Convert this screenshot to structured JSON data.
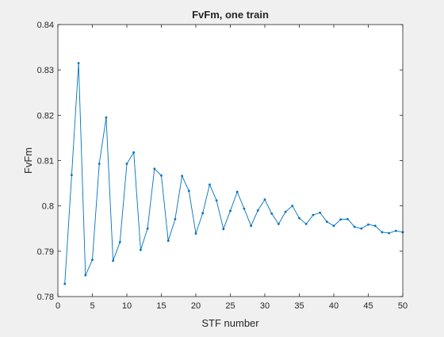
{
  "chart_data": {
    "type": "line",
    "title": "FvFm, one train",
    "xlabel": "STF number",
    "ylabel": "FvFm",
    "xlim": [
      0,
      50
    ],
    "ylim": [
      0.78,
      0.84
    ],
    "xticks": [
      0,
      5,
      10,
      15,
      20,
      25,
      30,
      35,
      40,
      45,
      50
    ],
    "yticks": [
      0.78,
      0.79,
      0.8,
      0.81,
      0.82,
      0.83,
      0.84
    ],
    "xtick_labels": [
      "0",
      "5",
      "10",
      "15",
      "20",
      "25",
      "30",
      "35",
      "40",
      "45",
      "50"
    ],
    "ytick_labels": [
      "0.78",
      "0.79",
      "0.8",
      "0.81",
      "0.82",
      "0.83",
      "0.84"
    ],
    "grid": false,
    "line_color": "#0072bd",
    "x": [
      1,
      2,
      3,
      4,
      5,
      6,
      7,
      8,
      9,
      10,
      11,
      12,
      13,
      14,
      15,
      16,
      17,
      18,
      19,
      20,
      21,
      22,
      23,
      24,
      25,
      26,
      27,
      28,
      29,
      30,
      31,
      32,
      33,
      34,
      35,
      36,
      37,
      38,
      39,
      40,
      41,
      42,
      43,
      44,
      45,
      46,
      47,
      48,
      49,
      50
    ],
    "y": [
      0.7828,
      0.8068,
      0.8315,
      0.7847,
      0.7881,
      0.8093,
      0.8195,
      0.7879,
      0.792,
      0.8093,
      0.8118,
      0.7903,
      0.795,
      0.8082,
      0.8067,
      0.7923,
      0.7971,
      0.8066,
      0.8033,
      0.7939,
      0.7984,
      0.8047,
      0.8012,
      0.7949,
      0.7989,
      0.8031,
      0.7994,
      0.7956,
      0.799,
      0.8014,
      0.7983,
      0.796,
      0.7987,
      0.8,
      0.7973,
      0.796,
      0.798,
      0.7985,
      0.7965,
      0.7956,
      0.797,
      0.7971,
      0.7954,
      0.795,
      0.7959,
      0.7956,
      0.7942,
      0.794,
      0.7945,
      0.7942
    ]
  }
}
